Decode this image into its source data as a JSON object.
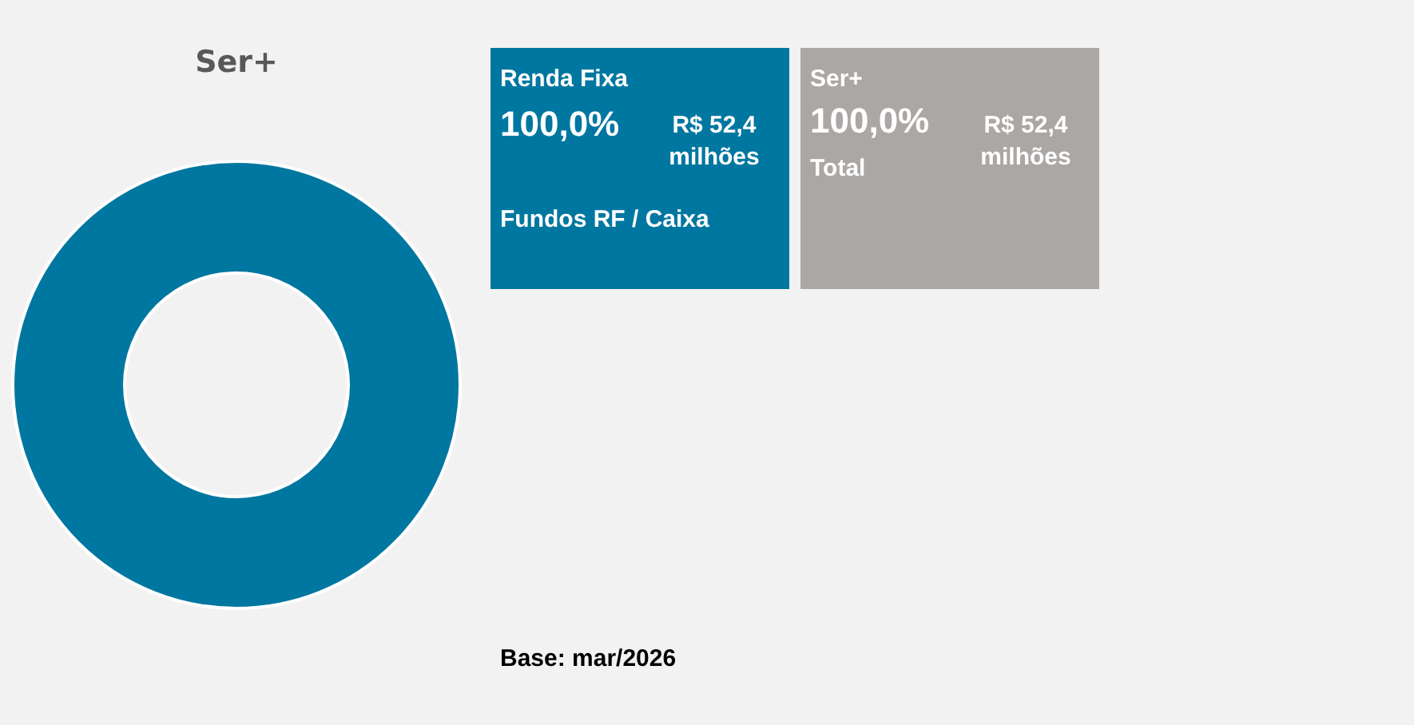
{
  "chart_data": [
    {
      "type": "donut",
      "title": "Ser+",
      "categories": [
        "Renda Fixa"
      ],
      "values": [
        100
      ],
      "colors": [
        "#0077a0"
      ],
      "value_labels": [
        "100,0%"
      ],
      "annotations": [
        "R$ 52,4 milhões",
        "Fundos RF / Caixa",
        "Base: mar/2026"
      ]
    },
    {
      "type": "other",
      "title": "Ser+",
      "annotations": [
        "100,0%",
        "R$ 52,4 milhões",
        "Total"
      ]
    }
  ]
}
